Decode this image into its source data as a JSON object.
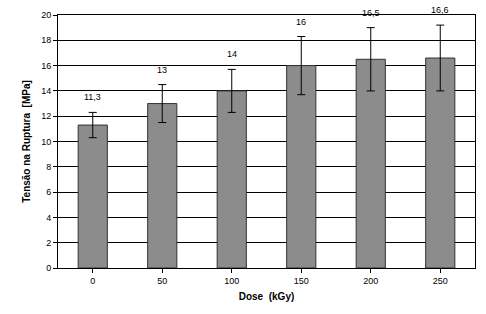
{
  "chart_data": {
    "type": "bar",
    "x_label": "Dose  (kGy)",
    "y_label": "Tensão na Ruptura  [MPa]",
    "categories": [
      "0",
      "50",
      "100",
      "150",
      "200",
      "250"
    ],
    "values": [
      11.3,
      13,
      14,
      16,
      16.5,
      16.6
    ],
    "value_labels": [
      "11,3",
      "13",
      "14",
      "16",
      "16,5",
      "16,6"
    ],
    "errors": [
      1.0,
      1.5,
      1.7,
      2.3,
      2.5,
      2.6
    ],
    "color": "#8c8c8c",
    "ylim": [
      0,
      20
    ],
    "yticks": [
      0,
      2,
      4,
      6,
      8,
      10,
      12,
      14,
      16,
      18,
      20
    ],
    "grid": true,
    "data_labels": true
  }
}
